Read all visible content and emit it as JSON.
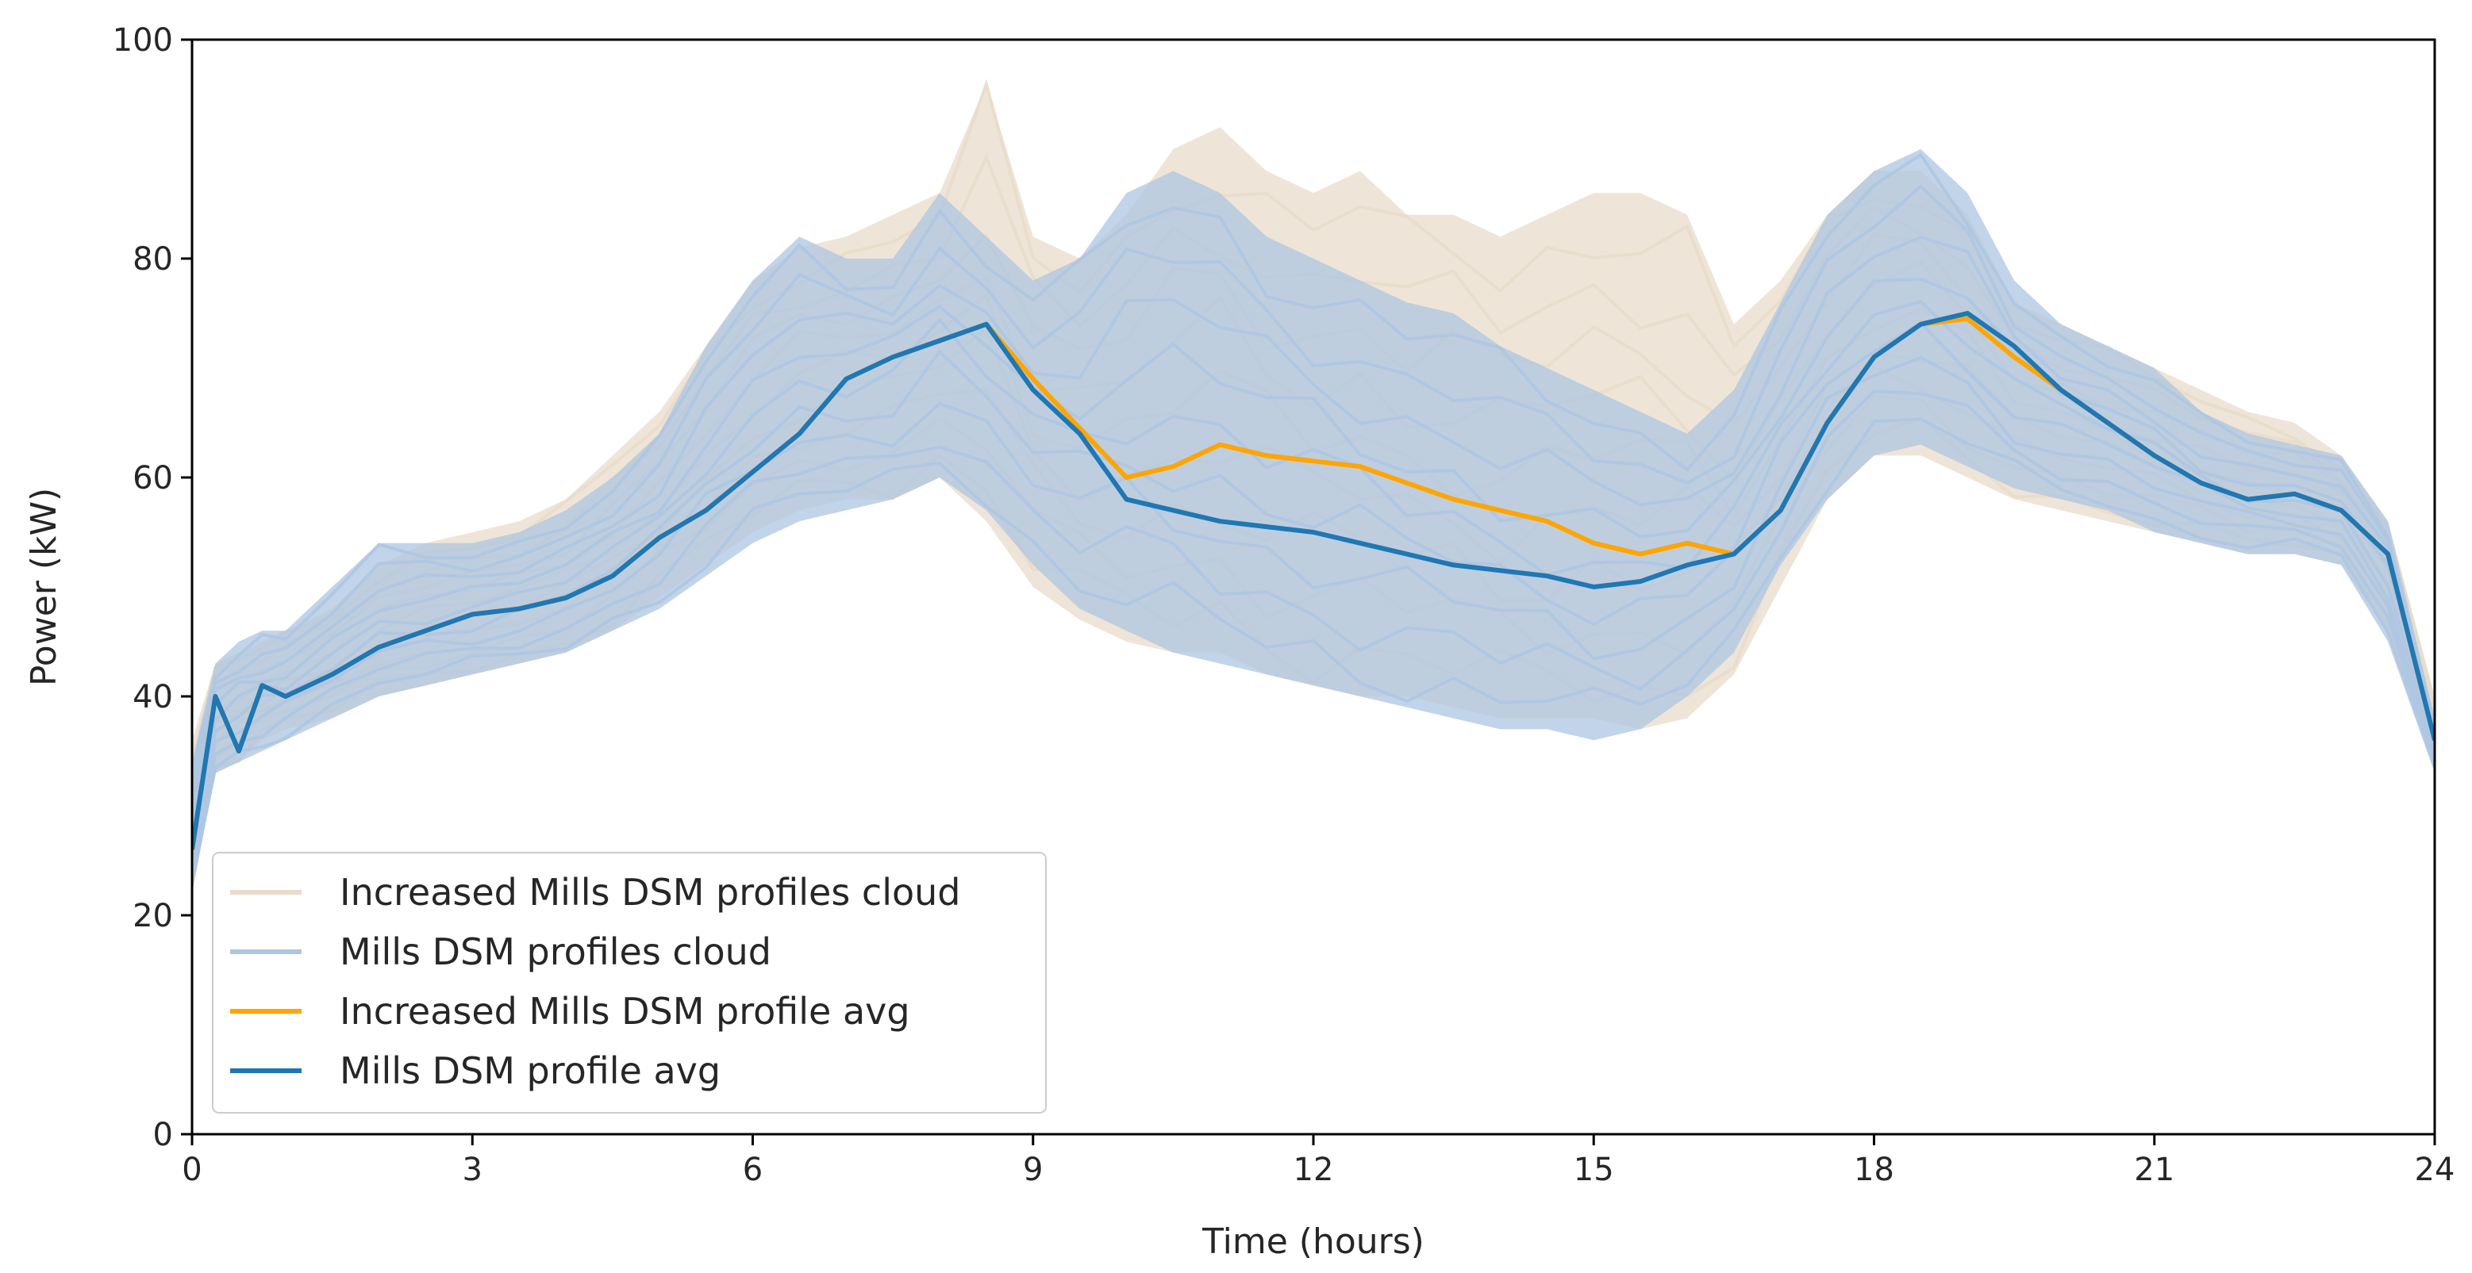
{
  "chart_data": {
    "type": "line",
    "title": "",
    "xlabel": "Time (hours)",
    "ylabel": "Power (kW)",
    "xlim": [
      0,
      24
    ],
    "ylim": [
      0,
      100
    ],
    "xticks": [
      0,
      3,
      6,
      9,
      12,
      15,
      18,
      21,
      24
    ],
    "yticks": [
      0,
      20,
      40,
      60,
      80,
      100
    ],
    "grid": false,
    "legend_position": "lower-left",
    "x": [
      0,
      0.25,
      0.5,
      0.75,
      1,
      1.5,
      2,
      2.5,
      3,
      3.5,
      4,
      4.5,
      5,
      5.5,
      6,
      6.5,
      7,
      7.5,
      8,
      8.5,
      9,
      9.5,
      10,
      10.5,
      11,
      11.5,
      12,
      12.5,
      13,
      13.5,
      14,
      14.5,
      15,
      15.5,
      16,
      16.5,
      17,
      17.5,
      18,
      18.5,
      19,
      19.5,
      20,
      20.5,
      21,
      21.5,
      22,
      22.5,
      23,
      23.5,
      24
    ],
    "series": [
      {
        "name": "Increased Mills DSM profiles cloud",
        "color": "#e8dccb",
        "upper": [
          36,
          43,
          44,
          45,
          46,
          48,
          52,
          54,
          55,
          56,
          58,
          62,
          66,
          72,
          78,
          81,
          82,
          84,
          86,
          96,
          82,
          80,
          84,
          90,
          92,
          88,
          86,
          88,
          84,
          84,
          82,
          84,
          86,
          86,
          84,
          74,
          78,
          84,
          88,
          88,
          84,
          76,
          74,
          72,
          70,
          68,
          66,
          65,
          62,
          56,
          40
        ],
        "lower": [
          22,
          33,
          34,
          36,
          37,
          38,
          40,
          41,
          42,
          43,
          44,
          46,
          49,
          52,
          55,
          57,
          58,
          58,
          60,
          56,
          50,
          47,
          45,
          44,
          44,
          42,
          41,
          40,
          40,
          39,
          38,
          38,
          38,
          37,
          38,
          42,
          50,
          58,
          62,
          62,
          60,
          58,
          57,
          56,
          55,
          54,
          53,
          53,
          52,
          46,
          34
        ]
      },
      {
        "name": "Mills DSM profiles cloud",
        "color": "#aec6e2",
        "upper": [
          34,
          43,
          45,
          46,
          46,
          50,
          54,
          54,
          54,
          55,
          57,
          60,
          64,
          72,
          78,
          82,
          80,
          80,
          86,
          82,
          78,
          80,
          86,
          88,
          86,
          82,
          80,
          78,
          76,
          75,
          72,
          70,
          68,
          66,
          64,
          68,
          76,
          84,
          88,
          90,
          86,
          78,
          74,
          72,
          70,
          66,
          64,
          63,
          62,
          56,
          38
        ],
        "lower": [
          22,
          33,
          34,
          35,
          36,
          38,
          40,
          41,
          42,
          43,
          44,
          46,
          48,
          51,
          54,
          56,
          57,
          58,
          60,
          57,
          52,
          48,
          46,
          44,
          43,
          42,
          41,
          40,
          39,
          38,
          37,
          37,
          36,
          37,
          40,
          44,
          52,
          58,
          62,
          63,
          61,
          59,
          58,
          57,
          55,
          54,
          53,
          53,
          52,
          45,
          33
        ]
      },
      {
        "name": "Increased Mills DSM profile avg",
        "color": "#ffa500",
        "values": [
          26,
          40,
          35,
          41,
          40,
          42,
          44.5,
          46,
          47.5,
          48,
          49,
          51,
          54.5,
          57,
          60.5,
          64,
          69,
          71,
          72.5,
          74,
          69,
          64.5,
          60,
          61,
          63,
          62,
          61.5,
          61,
          59.5,
          58,
          57,
          56,
          54,
          53,
          54,
          53,
          57,
          65,
          71,
          74,
          74.5,
          71,
          68,
          65,
          62,
          59.5,
          58,
          58.5,
          57,
          53,
          36
        ]
      },
      {
        "name": "Mills DSM profile avg",
        "color": "#1f77b4",
        "values": [
          26,
          40,
          35,
          41,
          40,
          42,
          44.5,
          46,
          47.5,
          48,
          49,
          51,
          54.5,
          57,
          60.5,
          64,
          69,
          71,
          72.5,
          74,
          68,
          64,
          58,
          57,
          56,
          55.5,
          55,
          54,
          53,
          52,
          51.5,
          51,
          50,
          50.5,
          52,
          53,
          57,
          65,
          71,
          74,
          75,
          72,
          68,
          65,
          62,
          59.5,
          58,
          58.5,
          57,
          53,
          36
        ]
      }
    ]
  }
}
